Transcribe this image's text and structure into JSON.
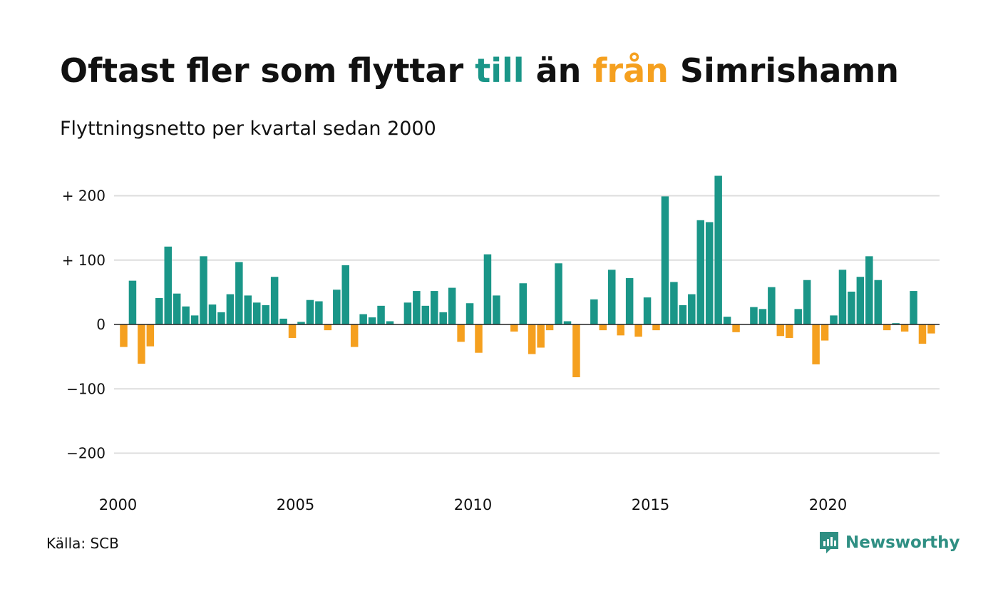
{
  "title": {
    "part1": "Oftast fler som flyttar ",
    "part2": "till",
    "part3": " än ",
    "part4": "från",
    "part5": " Simrishamn"
  },
  "subtitle": "Flyttningsnetto per kvartal sedan 2000",
  "source": "Källa: SCB",
  "brand": {
    "name": "Newsworthy",
    "icon": "newsworthy-logo-icon"
  },
  "colors": {
    "positive": "#1a9688",
    "negative": "#f5a01f",
    "text": "#111111",
    "grid": "#dddddd",
    "brand": "#2f8f83"
  },
  "chart_data": {
    "type": "bar",
    "x_start": "2000 Q1",
    "frequency": "quarterly",
    "values": [
      -35,
      68,
      -61,
      -34,
      41,
      121,
      48,
      28,
      14,
      106,
      31,
      19,
      47,
      97,
      45,
      34,
      30,
      74,
      9,
      -21,
      4,
      38,
      36,
      -9,
      54,
      92,
      -35,
      16,
      11,
      29,
      5,
      0,
      34,
      52,
      29,
      52,
      19,
      57,
      -27,
      33,
      -44,
      109,
      45,
      0,
      -11,
      64,
      -46,
      -36,
      -9,
      95,
      5,
      -82,
      0,
      39,
      -9,
      85,
      -17,
      72,
      -19,
      42,
      -9,
      199,
      66,
      30,
      47,
      162,
      159,
      231,
      12,
      -12,
      0,
      27,
      24,
      58,
      -18,
      -21,
      24,
      69,
      -62,
      -25,
      14,
      85,
      51,
      74,
      106,
      69,
      -9,
      2,
      -11,
      52,
      -30,
      -14
    ],
    "x_ticks": [
      "2000",
      "2005",
      "2010",
      "2015",
      "2020"
    ],
    "y_ticks": [
      {
        "value": 200,
        "label": "+ 200"
      },
      {
        "value": 100,
        "label": "+ 100"
      },
      {
        "value": 0,
        "label": "0"
      },
      {
        "value": -100,
        "label": "−100"
      },
      {
        "value": -200,
        "label": "−200"
      }
    ],
    "ylim": [
      -200,
      231
    ],
    "grid": true,
    "legend": "none"
  }
}
